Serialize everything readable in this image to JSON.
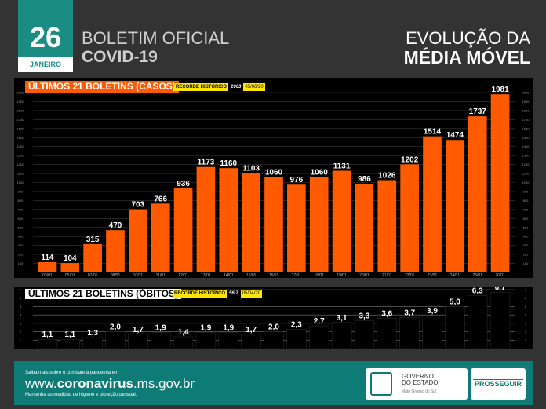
{
  "header": {
    "day": "26",
    "month": "JANEIRO",
    "bulletin_line1": "BOLETIM OFICIAL",
    "bulletin_line2": "COVID-19",
    "evolution_line1": "EVOLUÇÃO DA",
    "evolution_line2": "MÉDIA MÓVEL"
  },
  "cases_panel": {
    "title": "ÚLTIMOS 21 BOLETINS (CASOS)",
    "record_label": "RECORDE HISTÓRICO",
    "record_value": "2003",
    "record_date": "05/06/20"
  },
  "deaths_panel": {
    "title": "ÚLTIMOS 21 BOLETINS (ÓBITOS)",
    "record_label": "RECORDE HISTÓRICO",
    "record_value": "56,7",
    "record_date": "05/04/20"
  },
  "chart_data": [
    {
      "type": "bar",
      "categories": [
        "03/01",
        "05/01",
        "07/01",
        "08/01",
        "10/01",
        "11/01",
        "12/01",
        "13/01",
        "14/01",
        "15/01",
        "16/01",
        "17/01",
        "18/01",
        "19/01",
        "20/01",
        "21/01",
        "22/01",
        "23/01",
        "24/01",
        "25/01",
        "26/01"
      ],
      "values": [
        114,
        104,
        315,
        470,
        703,
        766,
        936,
        1173,
        1160,
        1103,
        1060,
        976,
        1060,
        1131,
        986,
        1026,
        1202,
        1514,
        1474,
        1737,
        1981
      ],
      "value_labels": [
        "114",
        "104",
        "315",
        "470",
        "703",
        "766",
        "936",
        "1173",
        "1160",
        "1103",
        "1060",
        "976",
        "1060",
        "1131",
        "986",
        "1026",
        "1202",
        "1514",
        "1474",
        "1737",
        "1981"
      ],
      "ylim": [
        0,
        2000
      ],
      "yticks": [
        "100",
        "200",
        "300",
        "400",
        "500",
        "600",
        "700",
        "800",
        "900",
        "1000",
        "1100",
        "1200",
        "1300",
        "1400",
        "1500",
        "1600",
        "1700",
        "1800",
        "1900",
        "2000"
      ],
      "color": "#ff5a00"
    },
    {
      "type": "bar",
      "categories": [
        "03/01",
        "05/01",
        "07/01",
        "08/01",
        "10/01",
        "11/01",
        "12/01",
        "13/01",
        "14/01",
        "15/01",
        "16/01",
        "17/01",
        "18/01",
        "19/01",
        "20/01",
        "21/01",
        "22/01",
        "23/01",
        "24/01",
        "25/01",
        "26/01"
      ],
      "values": [
        1.1,
        1.1,
        1.3,
        2.0,
        1.7,
        1.9,
        1.4,
        1.9,
        1.9,
        1.7,
        2.0,
        2.3,
        2.7,
        3.1,
        3.3,
        3.6,
        3.7,
        3.9,
        5.0,
        6.3,
        6.7
      ],
      "value_labels": [
        "1,1",
        "1,1",
        "1,3",
        "2,0",
        "1,7",
        "1,9",
        "1,4",
        "1,9",
        "1,9",
        "1,7",
        "2,0",
        "2,3",
        "2,7",
        "3,1",
        "3,3",
        "3,6",
        "3,7",
        "3,9",
        "5,0",
        "6,3",
        "6,7"
      ],
      "ylim": [
        0,
        7
      ],
      "yticks": [
        "1",
        "2",
        "3",
        "4",
        "5",
        "6",
        "7"
      ],
      "color": "#000000"
    }
  ],
  "footer": {
    "line1": "Saiba mais sobre o combate à pandemia em",
    "url_pre": "www.",
    "url_bold": "coronavirus",
    "url_post": ".ms.gov.br",
    "line3": "Mantenha as medidas de higiene e proteção pessoal.",
    "gov1": "GOVERNO",
    "gov2": "DO ESTADO",
    "gov3": "Mato Grosso do Sul",
    "prossegue": "PROSSEGUIR"
  }
}
